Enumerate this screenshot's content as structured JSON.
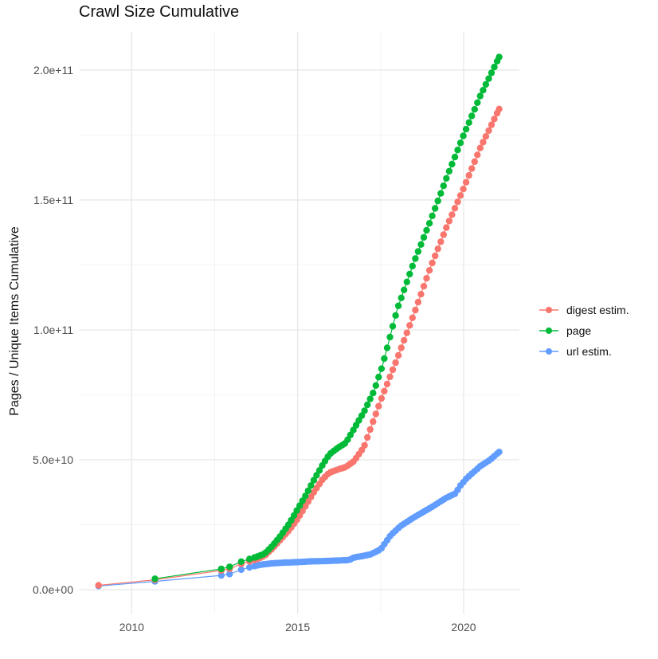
{
  "title": "Crawl Size Cumulative",
  "y_axis_title": "Pages / Unique Items Cumulative",
  "legend": {
    "position": "right",
    "items": [
      {
        "label": "digest estim.",
        "color": "#F8766D",
        "series_id": "digest-estim"
      },
      {
        "label": "page",
        "color": "#00BA38",
        "series_id": "page"
      },
      {
        "label": "url estim.",
        "color": "#619CFF",
        "series_id": "url-estim"
      }
    ]
  },
  "chart_data": {
    "type": "scatter",
    "title": "Crawl Size Cumulative",
    "xlabel": "",
    "ylabel": "Pages / Unique Items Cumulative",
    "xlim": [
      2008.42,
      2021.68
    ],
    "ylim": [
      -9200000000.0,
      214700000000.0
    ],
    "grid": "on",
    "legend_position": "right",
    "x_ticks": [
      {
        "value": 2010,
        "label": "2010"
      },
      {
        "value": 2015,
        "label": "2015"
      },
      {
        "value": 2020,
        "label": "2020"
      }
    ],
    "x_minor_ticks": [
      2012.5,
      2017.5
    ],
    "y_ticks": [
      {
        "value": 0.0,
        "label": "0.0e+00"
      },
      {
        "value": 50000000000.0,
        "label": "5.0e+10"
      },
      {
        "value": 100000000000.0,
        "label": "1.0e+11"
      },
      {
        "value": 150000000000.0,
        "label": "1.5e+11"
      },
      {
        "value": 200000000000.0,
        "label": "2.0e+11"
      }
    ],
    "y_minor_ticks": [
      25000000000.0,
      75000000000.0,
      125000000000.0,
      175000000000.0
    ],
    "draw_order": [
      "url-estim",
      "digest-estim",
      "page"
    ],
    "render": {
      "dot_radius": 4.2,
      "line_width": 1.2,
      "dot_interval_years": 0.085,
      "sparse_until_year": 2013.7,
      "grid_major_color": "#E7E7E7",
      "grid_minor_color": "#F2F2F2",
      "tick_text_color": "#4d4d4d"
    },
    "series": [
      {
        "id": "digest-estim",
        "name": "digest estim.",
        "color": "#F8766D",
        "points": [
          [
            2009.0,
            1700000000.0
          ],
          [
            2010.7,
            3800000000.0
          ],
          [
            2012.7,
            7400000000.0
          ],
          [
            2012.95,
            8000000000.0
          ],
          [
            2013.3,
            9900000000.0
          ],
          [
            2013.55,
            10900000000.0
          ],
          [
            2013.8,
            11900000000.0
          ],
          [
            2014.0,
            13000000000.0
          ],
          [
            2014.25,
            16000000000.0
          ],
          [
            2014.5,
            19500000000.0
          ],
          [
            2014.75,
            23000000000.0
          ],
          [
            2015.0,
            27300000000.0
          ],
          [
            2015.25,
            32500000000.0
          ],
          [
            2015.5,
            37800000000.0
          ],
          [
            2015.75,
            42500000000.0
          ],
          [
            2015.95,
            45000000000.0
          ],
          [
            2016.2,
            46200000000.0
          ],
          [
            2016.45,
            47200000000.0
          ],
          [
            2016.7,
            49500000000.0
          ],
          [
            2017.0,
            55000000000.0
          ],
          [
            2017.25,
            64000000000.0
          ],
          [
            2017.55,
            74500000000.0
          ],
          [
            2018.0,
            89000000000.0
          ],
          [
            2018.5,
            106000000000.0
          ],
          [
            2019.0,
            124000000000.0
          ],
          [
            2019.5,
            140000000000.0
          ],
          [
            2020.0,
            154500000000.0
          ],
          [
            2020.5,
            170000000000.0
          ],
          [
            2021.07,
            185000000000.0
          ]
        ]
      },
      {
        "id": "page",
        "name": "page",
        "color": "#00BA38",
        "points": [
          [
            2010.7,
            4200000000.0
          ],
          [
            2012.7,
            8000000000.0
          ],
          [
            2012.95,
            8800000000.0
          ],
          [
            2013.3,
            10800000000.0
          ],
          [
            2013.55,
            11800000000.0
          ],
          [
            2013.8,
            12800000000.0
          ],
          [
            2014.0,
            13800000000.0
          ],
          [
            2014.25,
            17000000000.0
          ],
          [
            2014.5,
            21000000000.0
          ],
          [
            2014.75,
            25500000000.0
          ],
          [
            2015.0,
            31000000000.0
          ],
          [
            2015.25,
            36500000000.0
          ],
          [
            2015.5,
            42500000000.0
          ],
          [
            2015.75,
            48000000000.0
          ],
          [
            2015.95,
            52000000000.0
          ],
          [
            2016.2,
            54500000000.0
          ],
          [
            2016.45,
            56500000000.0
          ],
          [
            2016.7,
            62000000000.0
          ],
          [
            2017.0,
            68500000000.0
          ],
          [
            2017.3,
            76500000000.0
          ],
          [
            2017.55,
            86000000000.0
          ],
          [
            2018.0,
            108000000000.0
          ],
          [
            2018.5,
            126000000000.0
          ],
          [
            2019.0,
            142000000000.0
          ],
          [
            2019.5,
            159000000000.0
          ],
          [
            2020.0,
            175000000000.0
          ],
          [
            2020.5,
            190000000000.0
          ],
          [
            2021.07,
            205000000000.0
          ]
        ]
      },
      {
        "id": "url-estim",
        "name": "url estim.",
        "color": "#619CFF",
        "points": [
          [
            2009.0,
            1400000000.0
          ],
          [
            2010.7,
            3200000000.0
          ],
          [
            2012.7,
            5500000000.0
          ],
          [
            2012.95,
            6000000000.0
          ],
          [
            2013.3,
            7700000000.0
          ],
          [
            2013.55,
            8600000000.0
          ],
          [
            2013.8,
            9400000000.0
          ],
          [
            2014.0,
            9800000000.0
          ],
          [
            2014.3,
            10200000000.0
          ],
          [
            2014.6,
            10400000000.0
          ],
          [
            2015.0,
            10600000000.0
          ],
          [
            2015.4,
            10900000000.0
          ],
          [
            2015.8,
            11000000000.0
          ],
          [
            2016.2,
            11200000000.0
          ],
          [
            2016.55,
            11400000000.0
          ],
          [
            2016.7,
            12400000000.0
          ],
          [
            2016.9,
            12800000000.0
          ],
          [
            2017.2,
            13600000000.0
          ],
          [
            2017.5,
            15500000000.0
          ],
          [
            2017.8,
            20900000000.0
          ],
          [
            2018.1,
            24500000000.0
          ],
          [
            2018.5,
            27800000000.0
          ],
          [
            2019.0,
            31500000000.0
          ],
          [
            2019.5,
            35500000000.0
          ],
          [
            2019.75,
            37000000000.0
          ],
          [
            2019.9,
            40000000000.0
          ],
          [
            2020.1,
            43000000000.0
          ],
          [
            2020.5,
            47500000000.0
          ],
          [
            2020.8,
            50000000000.0
          ],
          [
            2021.07,
            53000000000.0
          ]
        ]
      }
    ]
  }
}
